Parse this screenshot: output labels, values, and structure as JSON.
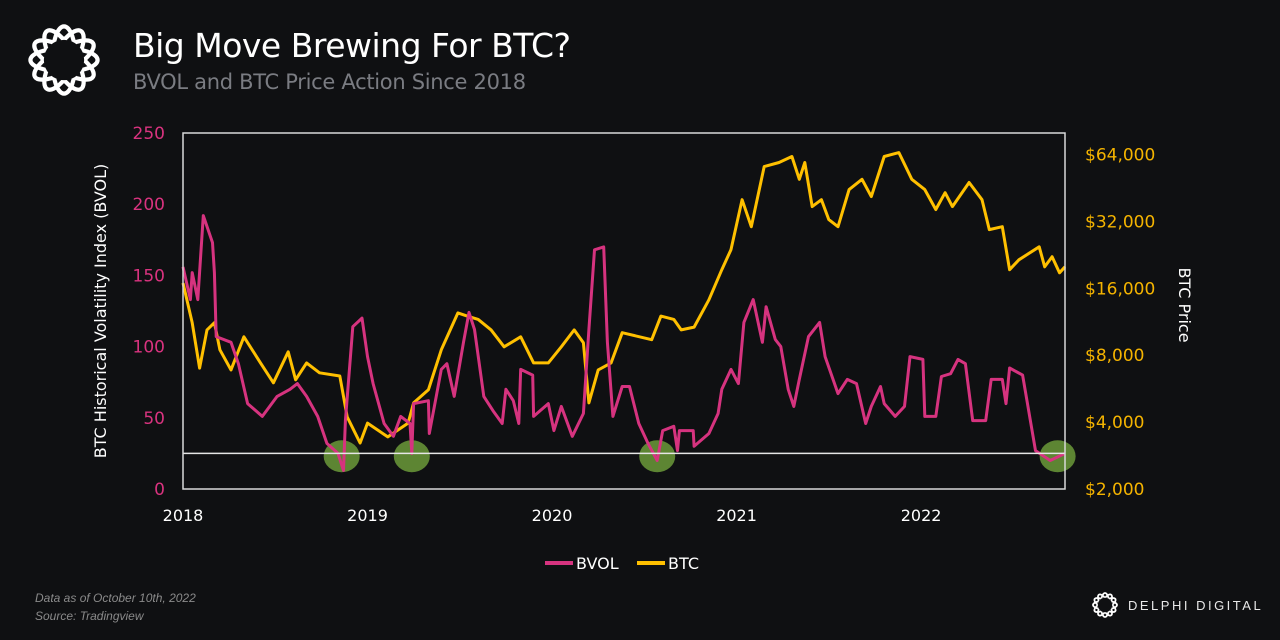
{
  "header": {
    "title": "Big Move Brewing For BTC?",
    "subtitle": "BVOL and BTC Price Action Since 2018"
  },
  "footer": {
    "note": "Data as of October 10th, 2022",
    "source": "Source: Tradingview",
    "brand": "DELPHI DIGITAL"
  },
  "chart_data": {
    "type": "line",
    "title": "Big Move Brewing For BTC?",
    "subtitle": "BVOL and BTC Price Action Since 2018",
    "xlabel": "",
    "xlim": [
      2018.0,
      2022.78
    ],
    "x_ticks": [
      "2018",
      "2019",
      "2020",
      "2021",
      "2022"
    ],
    "y_left": {
      "label": "BTC Historical Volatility Index (BVOL)",
      "ylim": [
        0,
        250
      ],
      "ticks": [
        "0",
        "50",
        "100",
        "150",
        "200",
        "250"
      ],
      "color": "#d9337f"
    },
    "y_right": {
      "label": "BTC Price",
      "scale": "log2",
      "ylim": [
        2000,
        80000
      ],
      "ticks": [
        "$2,000",
        "$4,000",
        "$8,000",
        "$16,000",
        "$32,000",
        "$64,000"
      ],
      "color": "#f5b400"
    },
    "grid": false,
    "legend": "bottom-center",
    "threshold_line": {
      "axis": "left",
      "value": 25,
      "color": "#e6e6e6"
    },
    "highlights": {
      "color": "#6b9a3a",
      "x": [
        2018.86,
        2019.24,
        2020.57,
        2022.74
      ],
      "y": 23
    },
    "series": [
      {
        "name": "BVOL",
        "axis": "left",
        "color": "#d6337f",
        "x": [
          2018.0,
          2018.04,
          2018.05,
          2018.08,
          2018.11,
          2018.16,
          2018.17,
          2018.18,
          2018.26,
          2018.3,
          2018.35,
          2018.43,
          2018.51,
          2018.58,
          2018.62,
          2018.67,
          2018.73,
          2018.78,
          2018.84,
          2018.87,
          2018.88,
          2018.92,
          2018.97,
          2019.0,
          2019.03,
          2019.09,
          2019.14,
          2019.18,
          2019.23,
          2019.24,
          2019.25,
          2019.33,
          2019.335,
          2019.4,
          2019.43,
          2019.47,
          2019.52,
          2019.55,
          2019.58,
          2019.63,
          2019.68,
          2019.73,
          2019.75,
          2019.79,
          2019.82,
          2019.83,
          2019.895,
          2019.9,
          2019.98,
          2020.01,
          2020.05,
          2020.11,
          2020.17,
          2020.2,
          2020.23,
          2020.28,
          2020.3,
          2020.33,
          2020.38,
          2020.42,
          2020.47,
          2020.52,
          2020.57,
          2020.6,
          2020.66,
          2020.68,
          2020.69,
          2020.765,
          2020.77,
          2020.85,
          2020.9,
          2020.92,
          2020.97,
          2021.01,
          2021.04,
          2021.09,
          2021.14,
          2021.16,
          2021.21,
          2021.24,
          2021.28,
          2021.31,
          2021.34,
          2021.39,
          2021.45,
          2021.48,
          2021.55,
          2021.6,
          2021.65,
          2021.7,
          2021.73,
          2021.78,
          2021.8,
          2021.86,
          2021.91,
          2021.94,
          2022.01,
          2022.02,
          2022.08,
          2022.11,
          2022.16,
          2022.2,
          2022.24,
          2022.28,
          2022.35,
          2022.38,
          2022.44,
          2022.46,
          2022.48,
          2022.55,
          2022.62,
          2022.7,
          2022.78
        ],
        "y": [
          156,
          133,
          152,
          133,
          192,
          173,
          152,
          107,
          103,
          88,
          60,
          51,
          65,
          70,
          74,
          65,
          51,
          32,
          25,
          13,
          48,
          114,
          120,
          93,
          74,
          46,
          37,
          51,
          46,
          25,
          60,
          62,
          39,
          84,
          88,
          65,
          103,
          124,
          112,
          65,
          55,
          46,
          70,
          62,
          46,
          84,
          80,
          51,
          60,
          41,
          58,
          37,
          53,
          112,
          168,
          170,
          103,
          51,
          72,
          72,
          46,
          32,
          20,
          41,
          44,
          27,
          41,
          41,
          30,
          39,
          53,
          70,
          84,
          74,
          117,
          133,
          103,
          128,
          105,
          100,
          70,
          58,
          77,
          107,
          117,
          93,
          67,
          77,
          74,
          46,
          58,
          72,
          60,
          51,
          58,
          93,
          91,
          51,
          51,
          79,
          81,
          91,
          88,
          48,
          48,
          77,
          77,
          60,
          85,
          80,
          27,
          20,
          25
        ]
      },
      {
        "name": "BTC",
        "axis": "right",
        "color": "#ffc000",
        "x": [
          2018.0,
          2018.05,
          2018.09,
          2018.13,
          2018.17,
          2018.2,
          2018.26,
          2018.33,
          2018.42,
          2018.49,
          2018.57,
          2018.61,
          2018.67,
          2018.74,
          2018.85,
          2018.89,
          2018.96,
          2019.0,
          2019.11,
          2019.22,
          2019.25,
          2019.33,
          2019.4,
          2019.49,
          2019.54,
          2019.6,
          2019.67,
          2019.74,
          2019.83,
          2019.9,
          2019.98,
          2020.05,
          2020.12,
          2020.17,
          2020.2,
          2020.25,
          2020.32,
          2020.38,
          2020.54,
          2020.59,
          2020.66,
          2020.7,
          2020.77,
          2020.85,
          2020.92,
          2020.97,
          2021.03,
          2021.08,
          2021.15,
          2021.23,
          2021.3,
          2021.34,
          2021.37,
          2021.41,
          2021.46,
          2021.5,
          2021.55,
          2021.61,
          2021.68,
          2021.73,
          2021.8,
          2021.88,
          2021.95,
          2022.02,
          2022.08,
          2022.13,
          2022.17,
          2022.26,
          2022.33,
          2022.37,
          2022.44,
          2022.48,
          2022.53,
          2022.64,
          2022.67,
          2022.71,
          2022.75,
          2022.78
        ],
        "y": [
          16900,
          11200,
          7000,
          10400,
          11200,
          8460,
          6870,
          9680,
          7390,
          6010,
          8290,
          6200,
          7390,
          6670,
          6450,
          4220,
          3220,
          3960,
          3430,
          3960,
          4880,
          5590,
          8460,
          12400,
          12000,
          11600,
          10400,
          8730,
          9680,
          7390,
          7390,
          8730,
          10400,
          9100,
          4880,
          6870,
          7390,
          10100,
          9400,
          12000,
          11600,
          10400,
          10700,
          14200,
          19400,
          23900,
          40100,
          30300,
          56500,
          58900,
          62700,
          49500,
          58900,
          37300,
          40100,
          32600,
          30300,
          44500,
          49500,
          41400,
          62700,
          65300,
          49500,
          44500,
          36200,
          43100,
          37300,
          47900,
          40100,
          29400,
          30300,
          19400,
          21500,
          24600,
          20000,
          22200,
          18800,
          20000
        ]
      }
    ]
  }
}
